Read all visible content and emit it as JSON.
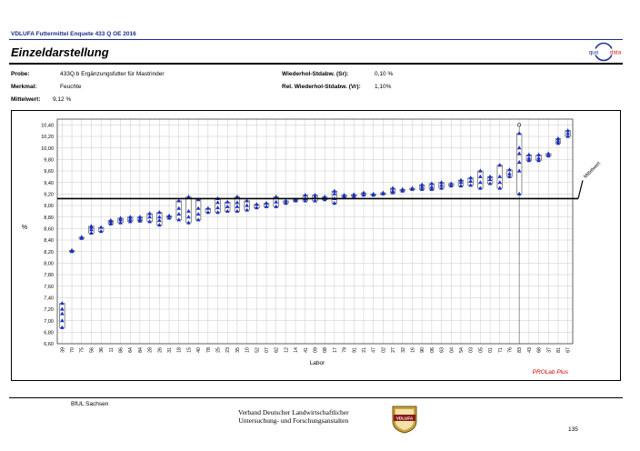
{
  "header": {
    "title": "VDLUFA Futtermittel Enquete 433 Q OE 2016",
    "heading": "Einzeldarstellung",
    "logo_left": "quo",
    "logo_right": "data"
  },
  "meta": {
    "probe_label": "Probe:",
    "probe_value": "433Q.b Ergänzungsfutter für Mastrinder",
    "merkmal_label": "Merkmal:",
    "merkmal_value": "Feuchte",
    "mittelwert_label": "Mittelwert:",
    "mittelwert_value": "9,12 %",
    "sr_label": "Wiederhol-Stdabw. (Sr):",
    "sr_value": "0,10 %",
    "vr_label": "Rel. Wiederhol-Stdabw. (Vr):",
    "vr_value": "1,10%"
  },
  "chart_data": {
    "type": "boxplot",
    "ylabel": "%",
    "xlabel": "Labor",
    "ylim": [
      6.6,
      10.5
    ],
    "yticks": [
      "6,60",
      "6,80",
      "7,00",
      "7,20",
      "7,40",
      "7,60",
      "7,80",
      "8,00",
      "8,20",
      "8,40",
      "8,60",
      "8,80",
      "9,00",
      "9,20",
      "9,40",
      "9,60",
      "9,80",
      "10,00",
      "10,20",
      "10,40"
    ],
    "grid": true,
    "mean": 9.12,
    "mean_label": "Mittelwert",
    "credit": "PROLab Plus",
    "colors": {
      "marker": "#1a2fbf",
      "mean_line": "#000000",
      "credit": "#cc0000",
      "grid": "#c8c8c8"
    },
    "labs": [
      {
        "labor": "39",
        "values": [
          6.88,
          7.0,
          7.12,
          7.2,
          7.3
        ]
      },
      {
        "labor": "70",
        "values": [
          8.2,
          8.22
        ]
      },
      {
        "labor": "75",
        "values": [
          8.43,
          8.45
        ]
      },
      {
        "labor": "56",
        "values": [
          8.52,
          8.58,
          8.62,
          8.64
        ]
      },
      {
        "labor": "36",
        "values": [
          8.55,
          8.62
        ]
      },
      {
        "labor": "11",
        "values": [
          8.68,
          8.72,
          8.74
        ]
      },
      {
        "labor": "86",
        "values": [
          8.7,
          8.75,
          8.78
        ]
      },
      {
        "labor": "64",
        "values": [
          8.72,
          8.76,
          8.8
        ]
      },
      {
        "labor": "84",
        "values": [
          8.73,
          8.76,
          8.8
        ]
      },
      {
        "labor": "28",
        "values": [
          8.72,
          8.8,
          8.86
        ]
      },
      {
        "labor": "26",
        "values": [
          8.66,
          8.74,
          8.8,
          8.88
        ]
      },
      {
        "labor": "31",
        "values": [
          8.78,
          8.82
        ]
      },
      {
        "labor": "18",
        "values": [
          8.75,
          8.85,
          8.95,
          9.08
        ]
      },
      {
        "labor": "15",
        "values": [
          8.7,
          8.8,
          8.9,
          9.15
        ]
      },
      {
        "labor": "40",
        "values": [
          8.75,
          8.85,
          8.95,
          9.1
        ]
      },
      {
        "labor": "78",
        "values": [
          8.88,
          8.95
        ]
      },
      {
        "labor": "25",
        "values": [
          8.88,
          8.96,
          9.05,
          9.12
        ]
      },
      {
        "labor": "23",
        "values": [
          8.9,
          8.98,
          9.06
        ]
      },
      {
        "labor": "35",
        "values": [
          8.9,
          8.98,
          9.05,
          9.15
        ]
      },
      {
        "labor": "10",
        "values": [
          8.92,
          9.0,
          9.08
        ]
      },
      {
        "labor": "52",
        "values": [
          8.96,
          9.02
        ]
      },
      {
        "labor": "07",
        "values": [
          8.98,
          9.04
        ]
      },
      {
        "labor": "62",
        "values": [
          8.98,
          9.06,
          9.15
        ]
      },
      {
        "labor": "12",
        "values": [
          9.04,
          9.08
        ]
      },
      {
        "labor": "14",
        "values": [
          9.08,
          9.1
        ]
      },
      {
        "labor": "41",
        "values": [
          9.08,
          9.12,
          9.18
        ]
      },
      {
        "labor": "09",
        "values": [
          9.08,
          9.14,
          9.18
        ]
      },
      {
        "labor": "08",
        "values": [
          9.1,
          9.15
        ]
      },
      {
        "labor": "17",
        "values": [
          9.04,
          9.12,
          9.2,
          9.25
        ]
      },
      {
        "labor": "79",
        "values": [
          9.15,
          9.18
        ]
      },
      {
        "labor": "91",
        "values": [
          9.16,
          9.19
        ]
      },
      {
        "labor": "21",
        "values": [
          9.18,
          9.22
        ]
      },
      {
        "labor": "47",
        "values": [
          9.18,
          9.2
        ]
      },
      {
        "labor": "02",
        "values": [
          9.2,
          9.22
        ]
      },
      {
        "labor": "27",
        "values": [
          9.22,
          9.25,
          9.3
        ]
      },
      {
        "labor": "32",
        "values": [
          9.25,
          9.28
        ]
      },
      {
        "labor": "16",
        "values": [
          9.28,
          9.3
        ]
      },
      {
        "labor": "90",
        "values": [
          9.28,
          9.32,
          9.36
        ]
      },
      {
        "labor": "06",
        "values": [
          9.28,
          9.32,
          9.38
        ]
      },
      {
        "labor": "63",
        "values": [
          9.3,
          9.35,
          9.4
        ]
      },
      {
        "labor": "04",
        "values": [
          9.34,
          9.38
        ]
      },
      {
        "labor": "54",
        "values": [
          9.34,
          9.4,
          9.44
        ]
      },
      {
        "labor": "03",
        "values": [
          9.35,
          9.42,
          9.48
        ]
      },
      {
        "labor": "05",
        "values": [
          9.3,
          9.4,
          9.5,
          9.6
        ]
      },
      {
        "labor": "01",
        "values": [
          9.38,
          9.45,
          9.5
        ]
      },
      {
        "labor": "71",
        "values": [
          9.3,
          9.4,
          9.5,
          9.7
        ]
      },
      {
        "labor": "76",
        "values": [
          9.5,
          9.55,
          9.62
        ]
      },
      {
        "labor": "83",
        "values": [
          9.2,
          9.6,
          9.75,
          9.9,
          10.0,
          10.25
        ],
        "outlier": 10.4
      },
      {
        "labor": "43",
        "values": [
          9.78,
          9.82,
          9.88
        ]
      },
      {
        "labor": "68",
        "values": [
          9.78,
          9.82,
          9.88
        ]
      },
      {
        "labor": "37",
        "values": [
          9.86,
          9.9
        ]
      },
      {
        "labor": "81",
        "values": [
          10.08,
          10.12,
          10.16
        ]
      },
      {
        "labor": "67",
        "values": [
          10.2,
          10.25,
          10.3
        ]
      }
    ]
  },
  "footer": {
    "lab": "BfUL Sachsen",
    "assoc_line1": "Verband Deutscher Landwirtschaftlicher",
    "assoc_line2": "Untersuchung- und Forschungsanstalten",
    "badge": "VDLUFA",
    "page_number": "135"
  }
}
